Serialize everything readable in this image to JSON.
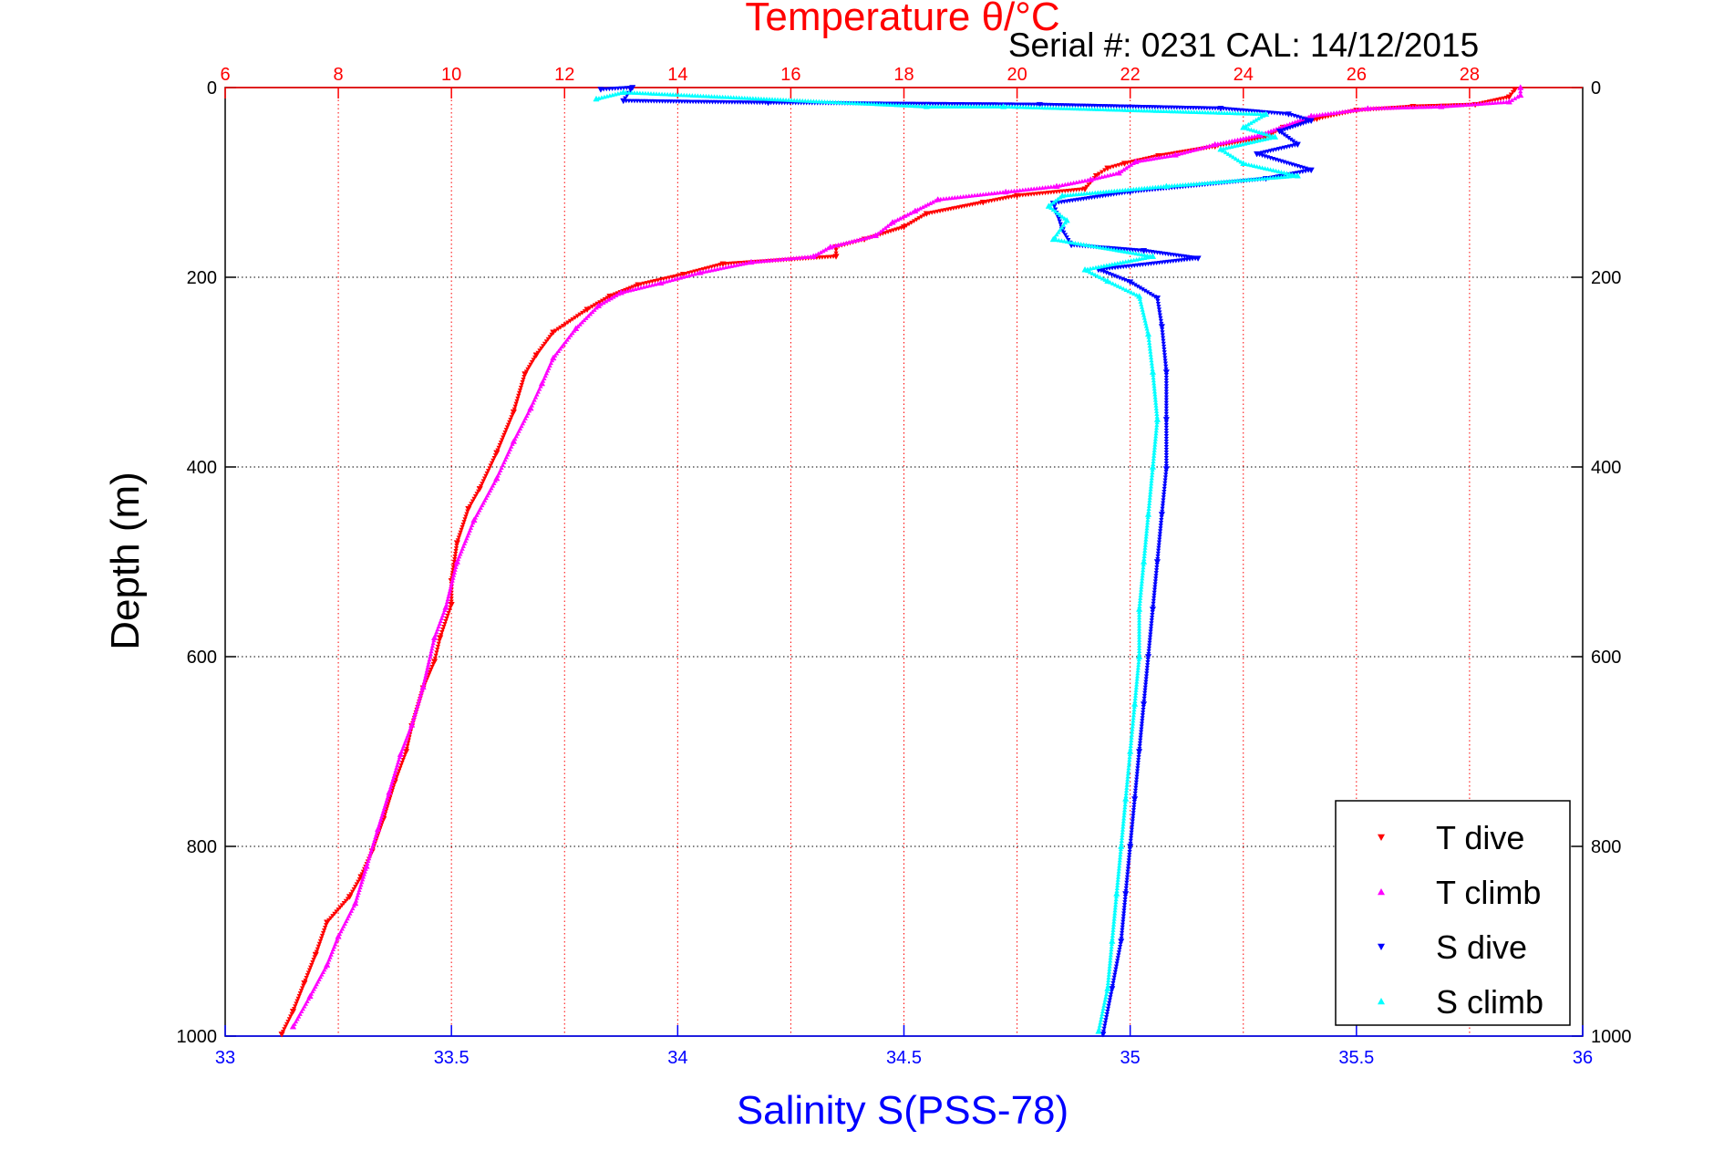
{
  "chart_data": {
    "type": "scatter",
    "title": "Temperature θ/°C",
    "subtitle": "Serial #: 0231  CAL: 14/12/2015",
    "xlabel_bottom": "Salinity S(PSS-78)",
    "xlabel_top": "Temperature θ/°C",
    "ylabel": "Depth (m)",
    "ylim": [
      0,
      1000
    ],
    "y_reversed": true,
    "xlim_bottom": [
      33,
      36
    ],
    "xlim_top": [
      6,
      30
    ],
    "y_ticks": [
      "0",
      "200",
      "400",
      "600",
      "800",
      "1000"
    ],
    "x_bottom_ticks": [
      "33",
      "33.5",
      "34",
      "34.5",
      "35",
      "35.5",
      "36"
    ],
    "x_top_ticks": [
      "6",
      "8",
      "10",
      "12",
      "14",
      "16",
      "18",
      "20",
      "22",
      "24",
      "26",
      "28"
    ],
    "grid": true,
    "legend_position": "bottom-right",
    "colors": {
      "title": "#ff0000",
      "top_axis": "#ff0000",
      "bottom_axis": "#0000ff",
      "grid_vertical": "#ff0000",
      "grid_horizontal": "#000000",
      "t_dive": "#ff0000",
      "t_climb": "#ff00ff",
      "s_dive": "#0000ff",
      "s_climb": "#00ffff"
    },
    "series": [
      {
        "name": "T dive",
        "axis": "temperature",
        "marker": "triangle-down",
        "points": [
          [
            28.8,
            2
          ],
          [
            28.7,
            10
          ],
          [
            28.1,
            18
          ],
          [
            27.0,
            20
          ],
          [
            26.0,
            24
          ],
          [
            25.3,
            33
          ],
          [
            24.7,
            42
          ],
          [
            24.4,
            52
          ],
          [
            23.5,
            62
          ],
          [
            22.5,
            72
          ],
          [
            21.9,
            80
          ],
          [
            21.6,
            85
          ],
          [
            21.4,
            93
          ],
          [
            21.2,
            107
          ],
          [
            20.0,
            114
          ],
          [
            19.4,
            121
          ],
          [
            18.4,
            133
          ],
          [
            18.0,
            147
          ],
          [
            17.3,
            160
          ],
          [
            16.8,
            168
          ],
          [
            16.8,
            178
          ],
          [
            14.8,
            186
          ],
          [
            14.1,
            197
          ],
          [
            13.3,
            208
          ],
          [
            12.8,
            220
          ],
          [
            12.4,
            234
          ],
          [
            11.8,
            258
          ],
          [
            11.5,
            282
          ],
          [
            11.3,
            302
          ],
          [
            11.1,
            342
          ],
          [
            10.8,
            385
          ],
          [
            10.5,
            423
          ],
          [
            10.3,
            444
          ],
          [
            10.1,
            480
          ],
          [
            10.0,
            520
          ],
          [
            10.0,
            545
          ],
          [
            9.8,
            580
          ],
          [
            9.7,
            605
          ],
          [
            9.5,
            633
          ],
          [
            9.3,
            673
          ],
          [
            9.2,
            700
          ],
          [
            9.0,
            732
          ],
          [
            8.8,
            771
          ],
          [
            8.6,
            805
          ],
          [
            8.4,
            832
          ],
          [
            8.2,
            853
          ],
          [
            7.8,
            880
          ],
          [
            7.6,
            914
          ],
          [
            7.4,
            944
          ],
          [
            7.2,
            974
          ],
          [
            7.0,
            998
          ]
        ]
      },
      {
        "name": "T climb",
        "axis": "temperature",
        "marker": "triangle-up",
        "points": [
          [
            28.9,
            0
          ],
          [
            28.9,
            8
          ],
          [
            28.7,
            15
          ],
          [
            27.5,
            20
          ],
          [
            26.2,
            22
          ],
          [
            25.2,
            30
          ],
          [
            24.3,
            50
          ],
          [
            23.5,
            60
          ],
          [
            22.8,
            71
          ],
          [
            22.1,
            78
          ],
          [
            21.8,
            90
          ],
          [
            21.3,
            97
          ],
          [
            20.7,
            104
          ],
          [
            19.8,
            110
          ],
          [
            18.6,
            118
          ],
          [
            18.2,
            130
          ],
          [
            17.8,
            142
          ],
          [
            17.5,
            156
          ],
          [
            16.7,
            168
          ],
          [
            16.4,
            178
          ],
          [
            15.3,
            184
          ],
          [
            14.4,
            195
          ],
          [
            13.7,
            206
          ],
          [
            13.0,
            216
          ],
          [
            12.6,
            230
          ],
          [
            12.2,
            254
          ],
          [
            11.8,
            285
          ],
          [
            11.6,
            312
          ],
          [
            11.4,
            338
          ],
          [
            11.1,
            373
          ],
          [
            10.8,
            412
          ],
          [
            10.4,
            456
          ],
          [
            10.1,
            500
          ],
          [
            9.9,
            548
          ],
          [
            9.7,
            580
          ],
          [
            9.5,
            632
          ],
          [
            9.3,
            672
          ],
          [
            9.1,
            703
          ],
          [
            8.9,
            743
          ],
          [
            8.7,
            782
          ],
          [
            8.5,
            821
          ],
          [
            8.3,
            860
          ],
          [
            8.0,
            895
          ],
          [
            7.8,
            925
          ],
          [
            7.5,
            958
          ],
          [
            7.2,
            990
          ]
        ]
      },
      {
        "name": "S dive",
        "axis": "salinity",
        "marker": "triangle-down",
        "points": [
          [
            33.83,
            2
          ],
          [
            33.9,
            0
          ],
          [
            33.88,
            14
          ],
          [
            34.2,
            16
          ],
          [
            34.8,
            18
          ],
          [
            35.2,
            22
          ],
          [
            35.35,
            28
          ],
          [
            35.4,
            35
          ],
          [
            35.33,
            46
          ],
          [
            35.37,
            60
          ],
          [
            35.28,
            70
          ],
          [
            35.4,
            87
          ],
          [
            35.3,
            96
          ],
          [
            35.0,
            110
          ],
          [
            34.83,
            122
          ],
          [
            34.84,
            135
          ],
          [
            34.85,
            150
          ],
          [
            34.87,
            166
          ],
          [
            35.03,
            172
          ],
          [
            35.15,
            180
          ],
          [
            34.93,
            192
          ],
          [
            35.0,
            205
          ],
          [
            35.06,
            222
          ],
          [
            35.07,
            252
          ],
          [
            35.08,
            300
          ],
          [
            35.08,
            350
          ],
          [
            35.08,
            402
          ],
          [
            35.07,
            450
          ],
          [
            35.06,
            500
          ],
          [
            35.05,
            550
          ],
          [
            35.04,
            600
          ],
          [
            35.03,
            650
          ],
          [
            35.02,
            700
          ],
          [
            35.01,
            750
          ],
          [
            35.0,
            800
          ],
          [
            34.99,
            850
          ],
          [
            34.98,
            900
          ],
          [
            34.96,
            950
          ],
          [
            34.94,
            998
          ]
        ]
      },
      {
        "name": "S climb",
        "axis": "salinity",
        "marker": "triangle-up",
        "points": [
          [
            33.82,
            12
          ],
          [
            33.88,
            5
          ],
          [
            34.55,
            20
          ],
          [
            34.72,
            20
          ],
          [
            35.3,
            28
          ],
          [
            35.25,
            42
          ],
          [
            35.32,
            52
          ],
          [
            35.2,
            65
          ],
          [
            35.25,
            80
          ],
          [
            35.37,
            93
          ],
          [
            35.08,
            104
          ],
          [
            34.85,
            114
          ],
          [
            34.82,
            125
          ],
          [
            34.86,
            140
          ],
          [
            34.83,
            160
          ],
          [
            35.05,
            178
          ],
          [
            34.9,
            192
          ],
          [
            34.95,
            204
          ],
          [
            35.02,
            220
          ],
          [
            35.04,
            260
          ],
          [
            35.05,
            300
          ],
          [
            35.06,
            350
          ],
          [
            35.05,
            400
          ],
          [
            35.04,
            450
          ],
          [
            35.03,
            500
          ],
          [
            35.02,
            550
          ],
          [
            35.02,
            600
          ],
          [
            35.01,
            650
          ],
          [
            35.0,
            700
          ],
          [
            34.99,
            750
          ],
          [
            34.98,
            800
          ],
          [
            34.97,
            850
          ],
          [
            34.96,
            900
          ],
          [
            34.95,
            950
          ],
          [
            34.93,
            995
          ]
        ]
      }
    ]
  }
}
